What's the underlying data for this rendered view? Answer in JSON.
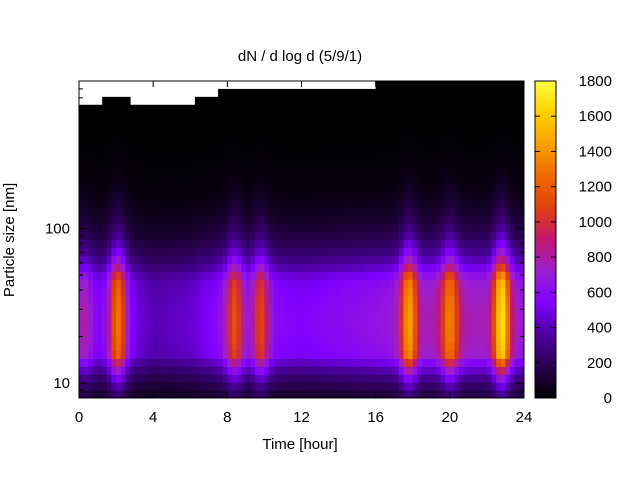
{
  "chart_data": {
    "type": "heatmap",
    "title": "dN / d log d (5/9/1)",
    "xlabel": "Time [hour]",
    "ylabel": "Particle size [nm]",
    "xlim": [
      0,
      24
    ],
    "ylim": [
      8,
      900
    ],
    "y_scale": "log",
    "x_ticks": [
      0,
      4,
      8,
      12,
      16,
      20,
      24
    ],
    "x_tick_labels": [
      "0",
      "4",
      "8",
      "12",
      "16",
      "20",
      "24"
    ],
    "y_ticks": [
      10,
      100
    ],
    "y_tick_labels": [
      "10",
      "100"
    ],
    "colorbar": {
      "min": 0,
      "max": 1800,
      "ticks": [
        0,
        200,
        400,
        600,
        800,
        1000,
        1200,
        1400,
        1600,
        1800
      ],
      "tick_labels": [
        "0",
        "200",
        "400",
        "600",
        "800",
        "1000",
        "1200",
        "1400",
        "1600",
        "1800"
      ],
      "colormap": [
        "#000000",
        "#2a0050",
        "#4d00a0",
        "#8000ff",
        "#9c1fd0",
        "#c2186e",
        "#e04010",
        "#f06a00",
        "#f8a000",
        "#ffd000",
        "#ffff40"
      ]
    },
    "mode_diameter_nm": 25,
    "upper_size_cutoff_nm": [
      {
        "t": 0,
        "d": 600
      },
      {
        "t": 1,
        "d": 600
      },
      {
        "t": 2,
        "d": 700
      },
      {
        "t": 3,
        "d": 600
      },
      {
        "t": 4,
        "d": 600
      },
      {
        "t": 5.5,
        "d": 580
      },
      {
        "t": 7.5,
        "d": 700
      },
      {
        "t": 8,
        "d": 750
      },
      {
        "t": 10,
        "d": 760
      },
      {
        "t": 12,
        "d": 780
      },
      {
        "t": 14,
        "d": 790
      },
      {
        "t": 16,
        "d": 800
      },
      {
        "t": 20,
        "d": 800
      },
      {
        "t": 24,
        "d": 800
      }
    ],
    "background_concentration": [
      {
        "t": 0,
        "value": 500
      },
      {
        "t": 2,
        "value": 600
      },
      {
        "t": 4,
        "value": 400
      },
      {
        "t": 6,
        "value": 450
      },
      {
        "t": 8,
        "value": 650
      },
      {
        "t": 10,
        "value": 600
      },
      {
        "t": 12,
        "value": 550
      },
      {
        "t": 16,
        "value": 650
      },
      {
        "t": 20,
        "value": 800
      },
      {
        "t": 24,
        "value": 700
      }
    ],
    "peaks": [
      {
        "t": 0.3,
        "value": 800
      },
      {
        "t": 2.1,
        "value": 1300
      },
      {
        "t": 8.4,
        "value": 1150
      },
      {
        "t": 9.8,
        "value": 1100
      },
      {
        "t": 17.8,
        "value": 1450
      },
      {
        "t": 20.0,
        "value": 1350
      },
      {
        "t": 22.8,
        "value": 1700
      }
    ]
  }
}
